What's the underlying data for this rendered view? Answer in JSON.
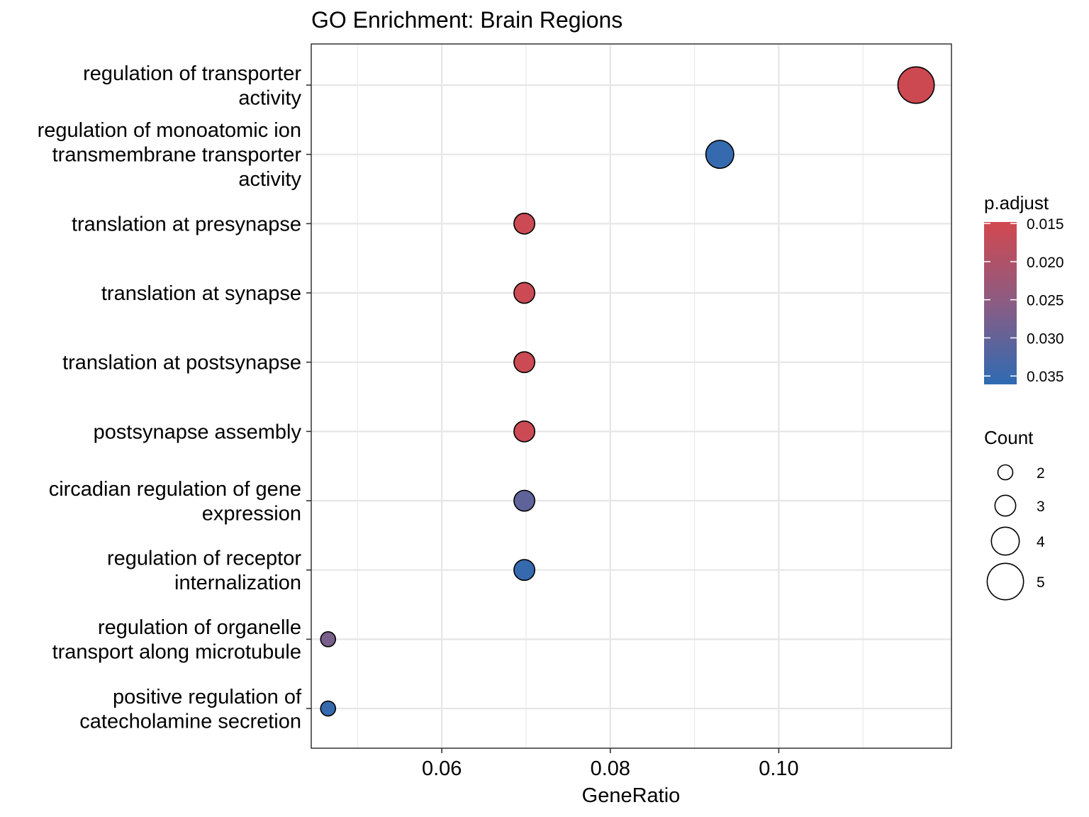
{
  "chart_data": {
    "type": "scatter",
    "title": "GO Enrichment: Brain Regions",
    "xlabel": "GeneRatio",
    "ylabel": "",
    "xlim": [
      0.0445,
      0.1205
    ],
    "x_ticks": [
      "0.06",
      "0.08",
      "0.10"
    ],
    "x_tick_values": [
      0.06,
      0.08,
      0.1
    ],
    "grid": true,
    "legend_position": "right",
    "points": [
      {
        "term": "regulation of transporter activity",
        "label_lines": [
          "regulation of transporter",
          "activity"
        ],
        "gene_ratio": 0.1163,
        "count": 5,
        "p_adjust": 0.0155
      },
      {
        "term": "regulation of monoatomic ion transmembrane transporter activity",
        "label_lines": [
          "regulation of monoatomic ion",
          "transmembrane transporter",
          "activity"
        ],
        "gene_ratio": 0.093,
        "count": 4,
        "p_adjust": 0.0352
      },
      {
        "term": "translation at presynapse",
        "label_lines": [
          "translation at presynapse"
        ],
        "gene_ratio": 0.0698,
        "count": 3,
        "p_adjust": 0.0158
      },
      {
        "term": "translation at synapse",
        "label_lines": [
          "translation at synapse"
        ],
        "gene_ratio": 0.0698,
        "count": 3,
        "p_adjust": 0.0158
      },
      {
        "term": "translation at postsynapse",
        "label_lines": [
          "translation at postsynapse"
        ],
        "gene_ratio": 0.0698,
        "count": 3,
        "p_adjust": 0.0158
      },
      {
        "term": "postsynapse assembly",
        "label_lines": [
          "postsynapse assembly"
        ],
        "gene_ratio": 0.0698,
        "count": 3,
        "p_adjust": 0.0158
      },
      {
        "term": "circadian regulation of gene expression",
        "label_lines": [
          "circadian regulation of gene",
          "expression"
        ],
        "gene_ratio": 0.0698,
        "count": 3,
        "p_adjust": 0.0305
      },
      {
        "term": "regulation of receptor internalization",
        "label_lines": [
          "regulation of receptor",
          "internalization"
        ],
        "gene_ratio": 0.0698,
        "count": 3,
        "p_adjust": 0.0352
      },
      {
        "term": "regulation of organelle transport along microtubule",
        "label_lines": [
          "regulation of organelle",
          "transport along microtubule"
        ],
        "gene_ratio": 0.0465,
        "count": 2,
        "p_adjust": 0.0275
      },
      {
        "term": "positive regulation of catecholamine secretion",
        "label_lines": [
          "positive regulation of",
          "catecholamine secretion"
        ],
        "gene_ratio": 0.0465,
        "count": 2,
        "p_adjust": 0.0352
      }
    ],
    "color_legend": {
      "title": "p.adjust",
      "min": 0.0148,
      "max": 0.0361,
      "low_color": "#d2484f",
      "mid_color": "#8b5c83",
      "high_color": "#2e6bb3",
      "ticks": [
        "0.015",
        "0.020",
        "0.025",
        "0.030",
        "0.035"
      ],
      "tick_values": [
        0.015,
        0.02,
        0.025,
        0.03,
        0.035
      ]
    },
    "size_legend": {
      "title": "Count",
      "entries": [
        {
          "label": "2",
          "value": 2
        },
        {
          "label": "3",
          "value": 3
        },
        {
          "label": "4",
          "value": 4
        },
        {
          "label": "5",
          "value": 5
        }
      ]
    }
  }
}
